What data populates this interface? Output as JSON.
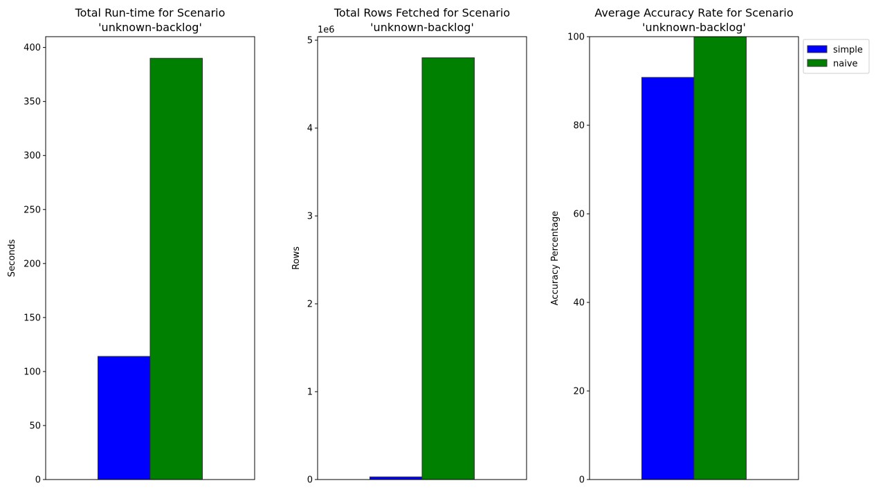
{
  "chart_data": [
    {
      "type": "bar",
      "title_lines": [
        "Total Run-time for Scenario",
        "'unknown-backlog'"
      ],
      "ylabel": "Seconds",
      "ylim": [
        0,
        410
      ],
      "yticks": [
        0,
        50,
        100,
        150,
        200,
        250,
        300,
        350,
        400
      ],
      "ytick_labels": [
        "0",
        "50",
        "100",
        "150",
        "200",
        "250",
        "300",
        "350",
        "400"
      ],
      "offset_label": "",
      "series": [
        {
          "name": "simple",
          "values": [
            114
          ]
        },
        {
          "name": "naive",
          "values": [
            390
          ]
        }
      ]
    },
    {
      "type": "bar",
      "title_lines": [
        "Total Rows Fetched for Scenario",
        "'unknown-backlog'"
      ],
      "ylabel": "Rows",
      "ylim": [
        0,
        5040000
      ],
      "yticks": [
        0,
        1000000,
        2000000,
        3000000,
        4000000,
        5000000
      ],
      "ytick_labels": [
        "0",
        "1",
        "2",
        "3",
        "4",
        "5"
      ],
      "offset_label": "1e6",
      "series": [
        {
          "name": "simple",
          "values": [
            30000
          ]
        },
        {
          "name": "naive",
          "values": [
            4800000
          ]
        }
      ]
    },
    {
      "type": "bar",
      "title_lines": [
        "Average Accuracy Rate for Scenario",
        "'unknown-backlog'"
      ],
      "ylabel": "Accuracy Percentage",
      "ylim": [
        0,
        100
      ],
      "yticks": [
        0,
        20,
        40,
        60,
        80,
        100
      ],
      "ytick_labels": [
        "0",
        "20",
        "40",
        "60",
        "80",
        "100"
      ],
      "offset_label": "",
      "series": [
        {
          "name": "simple",
          "values": [
            90.8
          ]
        },
        {
          "name": "naive",
          "values": [
            100
          ]
        }
      ],
      "legend": {
        "placement": "outside upper right",
        "entries": [
          "simple",
          "naive"
        ]
      }
    }
  ],
  "colors": {
    "simple": "#0000ff",
    "naive": "#008000",
    "edge": "#333333"
  }
}
